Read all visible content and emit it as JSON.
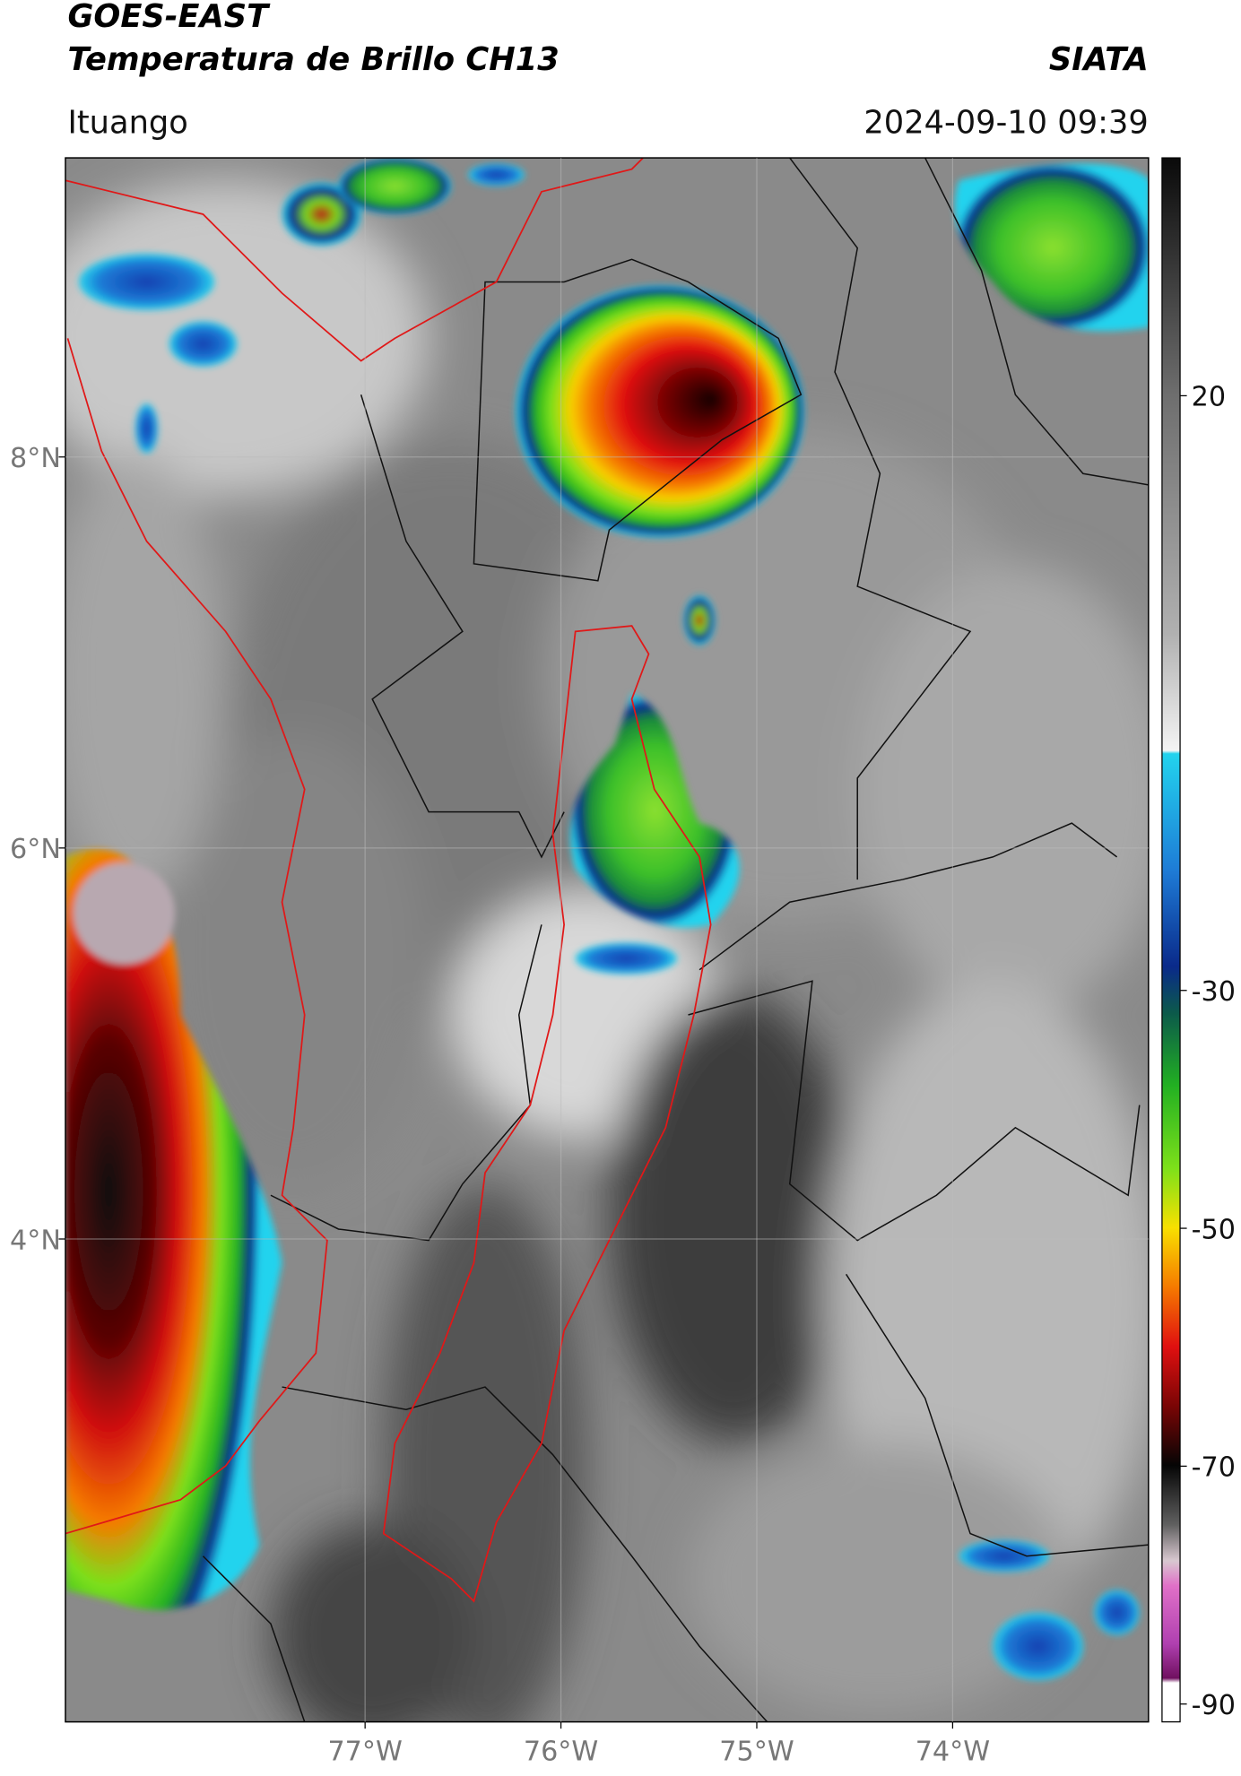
{
  "header": {
    "satellite": "GOES-EAST",
    "product": "Temperatura de Brillo CH13",
    "agency": "SIATA",
    "region": "Ituango",
    "timestamp": "2024-09-10 09:39"
  },
  "map": {
    "xlim": [
      -78.53,
      -73.0
    ],
    "ylim": [
      1.53,
      9.53
    ],
    "xticks": [
      {
        "value": -77,
        "label": "77°W"
      },
      {
        "value": -76,
        "label": "76°W"
      },
      {
        "value": -75,
        "label": "75°W"
      },
      {
        "value": -74,
        "label": "74°W"
      }
    ],
    "yticks": [
      {
        "value": 8,
        "label": "8°N"
      },
      {
        "value": 6,
        "label": "6°N"
      },
      {
        "value": 4,
        "label": "4°N"
      }
    ]
  },
  "colorbar": {
    "lim": [
      -91.5,
      40
    ],
    "ticks": [
      20,
      -30,
      -50,
      -70,
      -90
    ]
  }
}
